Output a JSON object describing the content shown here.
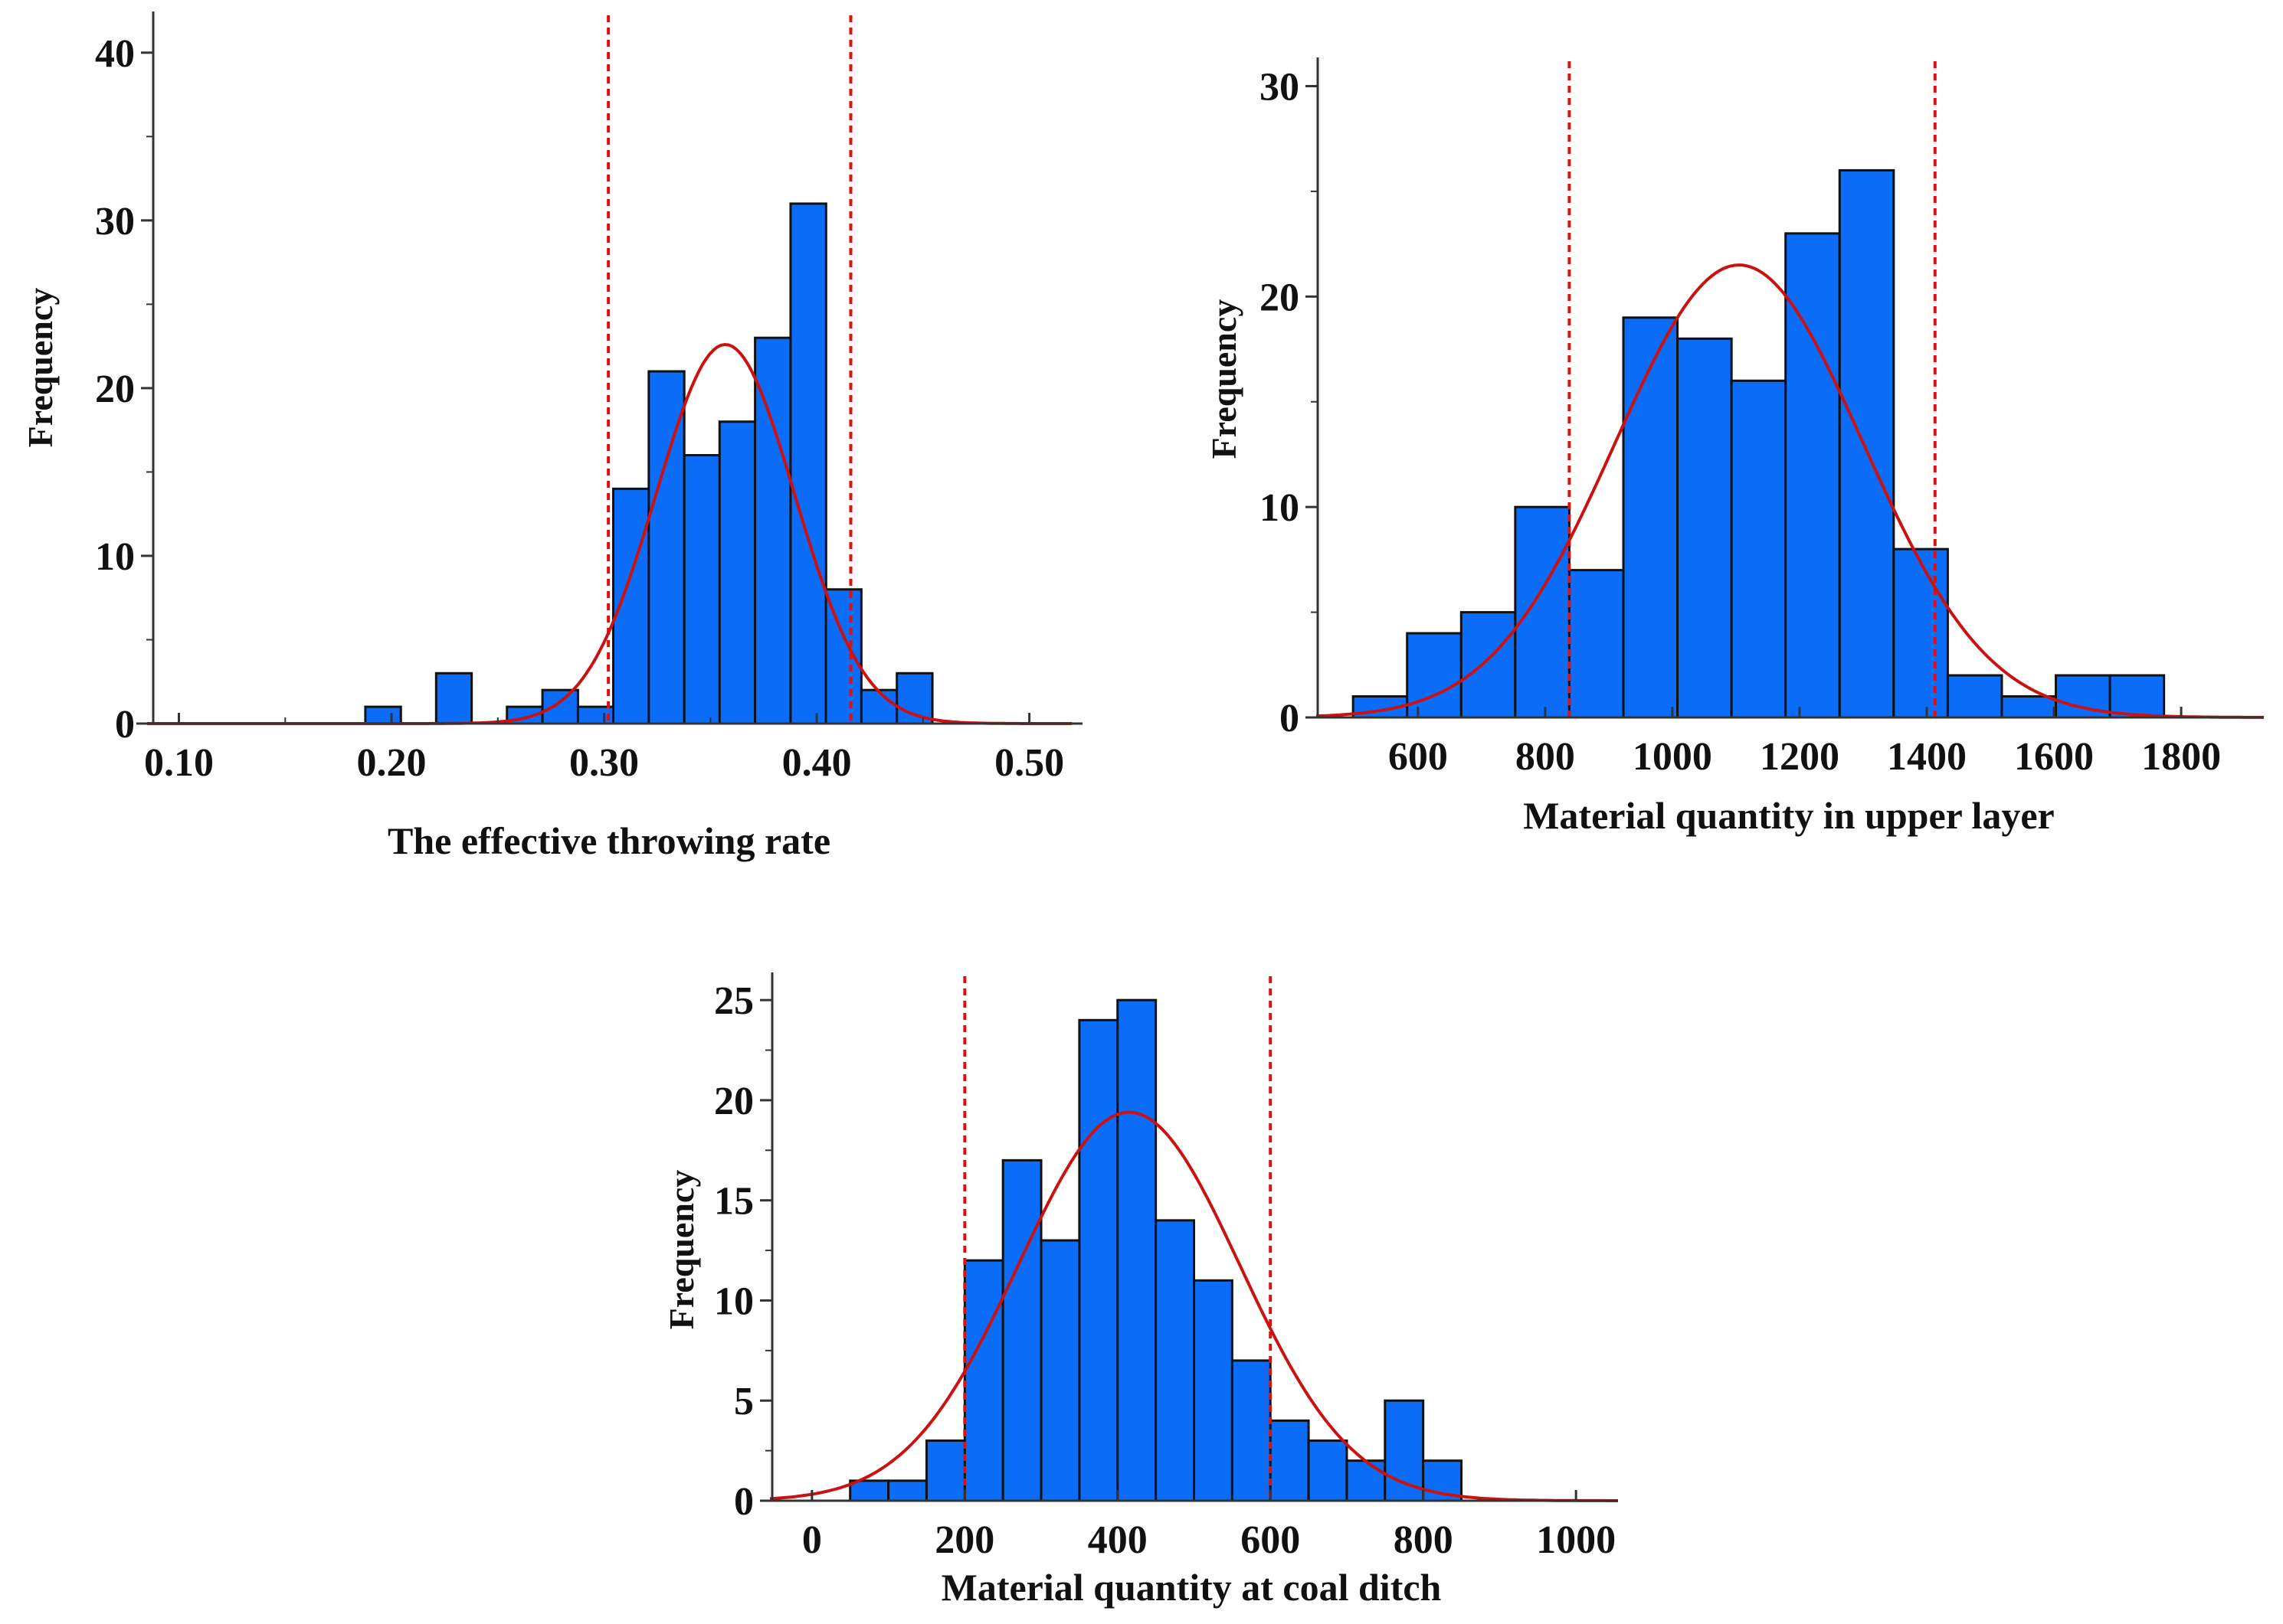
{
  "colors": {
    "bar_fill": "#0b6cf7",
    "bar_stroke": "#111111",
    "curve": "#cc1111",
    "limit_line": "#e01010",
    "axis": "#333333"
  },
  "chart_data": [
    {
      "id": "throwing-rate",
      "type": "bar",
      "title": "",
      "xlabel": "The effective throwing rate",
      "ylabel": "Frequency",
      "xlim": [
        0.08,
        0.525
      ],
      "ylim": [
        0,
        42
      ],
      "x_ticks": [
        0.1,
        0.2,
        0.3,
        0.4,
        0.5
      ],
      "x_tick_labels": [
        "0.10",
        "0.20",
        "0.30",
        "0.40",
        "0.50"
      ],
      "x_minor_ticks": [
        0.15,
        0.25,
        0.35,
        0.45
      ],
      "y_ticks": [
        0,
        10,
        20,
        30,
        40
      ],
      "y_tick_labels": [
        "0",
        "10",
        "20",
        "30",
        "40"
      ],
      "y_minor_ticks": [
        5,
        15,
        25,
        35
      ],
      "bin_width": 0.0167,
      "bins": [
        {
          "x0": 0.1877,
          "count": 1
        },
        {
          "x0": 0.221,
          "count": 3
        },
        {
          "x0": 0.2543,
          "count": 1
        },
        {
          "x0": 0.271,
          "count": 2
        },
        {
          "x0": 0.2877,
          "count": 1
        },
        {
          "x0": 0.3043,
          "count": 14
        },
        {
          "x0": 0.321,
          "count": 21
        },
        {
          "x0": 0.3377,
          "count": 16
        },
        {
          "x0": 0.3543,
          "count": 18
        },
        {
          "x0": 0.371,
          "count": 23
        },
        {
          "x0": 0.3877,
          "count": 31
        },
        {
          "x0": 0.4043,
          "count": 8
        },
        {
          "x0": 0.421,
          "count": 2
        },
        {
          "x0": 0.4377,
          "count": 3
        }
      ],
      "normal_curve": {
        "mean": 0.357,
        "sd": 0.0325,
        "peak": 22.6,
        "x_range": [
          0.085,
          0.52
        ]
      },
      "limit_lines": [
        0.302,
        0.416
      ]
    },
    {
      "id": "upper-layer",
      "type": "bar",
      "title": "",
      "xlabel": "Material quantity in upper layer",
      "ylabel": "Frequency",
      "xlim": [
        440,
        1930
      ],
      "ylim": [
        0,
        31
      ],
      "x_ticks": [
        600,
        800,
        1000,
        1200,
        1400,
        1600,
        1800
      ],
      "x_tick_labels": [
        "600",
        "800",
        "1000",
        "1200",
        "1400",
        "1600",
        "1800"
      ],
      "x_minor_ticks": [],
      "y_ticks": [
        0,
        10,
        20,
        30
      ],
      "y_tick_labels": [
        "0",
        "10",
        "20",
        "30"
      ],
      "y_minor_ticks": [
        5,
        15,
        25
      ],
      "bin_width": 85,
      "bins": [
        {
          "x0": 498,
          "count": 1
        },
        {
          "x0": 583,
          "count": 4
        },
        {
          "x0": 668,
          "count": 5
        },
        {
          "x0": 753,
          "count": 10
        },
        {
          "x0": 838,
          "count": 7
        },
        {
          "x0": 923,
          "count": 19
        },
        {
          "x0": 1008,
          "count": 18
        },
        {
          "x0": 1093,
          "count": 16
        },
        {
          "x0": 1178,
          "count": 23
        },
        {
          "x0": 1263,
          "count": 26
        },
        {
          "x0": 1348,
          "count": 8
        },
        {
          "x0": 1433,
          "count": 2
        },
        {
          "x0": 1518,
          "count": 1
        },
        {
          "x0": 1603,
          "count": 2
        },
        {
          "x0": 1688,
          "count": 2
        }
      ],
      "normal_curve": {
        "mean": 1105,
        "sd": 195,
        "peak": 21.5,
        "x_range": [
          440,
          1930
        ]
      },
      "limit_lines": [
        838,
        1413
      ]
    },
    {
      "id": "coal-ditch",
      "type": "bar",
      "title": "",
      "xlabel": "Material quantity at coal ditch",
      "ylabel": "Frequency",
      "xlim": [
        -55,
        1055
      ],
      "ylim": [
        0,
        26
      ],
      "x_ticks": [
        0,
        200,
        400,
        600,
        800,
        1000
      ],
      "x_tick_labels": [
        "0",
        "200",
        "400",
        "600",
        "800",
        "1000"
      ],
      "x_minor_ticks": [],
      "y_ticks": [
        0,
        5,
        10,
        15,
        20,
        25
      ],
      "y_tick_labels": [
        "0",
        "5",
        "10",
        "15",
        "20",
        "25"
      ],
      "y_minor_ticks": [
        2.5,
        7.5,
        12.5,
        17.5,
        22.5
      ],
      "bin_width": 50,
      "bins": [
        {
          "x0": 50,
          "count": 1
        },
        {
          "x0": 100,
          "count": 1
        },
        {
          "x0": 150,
          "count": 3
        },
        {
          "x0": 200,
          "count": 12
        },
        {
          "x0": 250,
          "count": 17
        },
        {
          "x0": 300,
          "count": 13
        },
        {
          "x0": 350,
          "count": 24
        },
        {
          "x0": 400,
          "count": 25
        },
        {
          "x0": 450,
          "count": 14
        },
        {
          "x0": 500,
          "count": 11
        },
        {
          "x0": 550,
          "count": 7
        },
        {
          "x0": 600,
          "count": 4
        },
        {
          "x0": 650,
          "count": 3
        },
        {
          "x0": 700,
          "count": 2
        },
        {
          "x0": 750,
          "count": 5
        },
        {
          "x0": 800,
          "count": 2
        }
      ],
      "normal_curve": {
        "mean": 415,
        "sd": 145,
        "peak": 19.4,
        "x_range": [
          -55,
          1055
        ]
      },
      "limit_lines": [
        200,
        600
      ]
    }
  ]
}
